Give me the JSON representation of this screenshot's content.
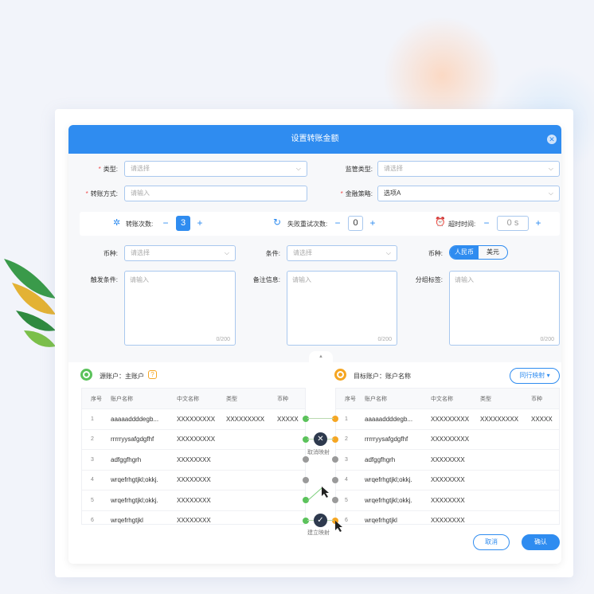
{
  "dialog": {
    "title": "设置转账金额"
  },
  "form": {
    "type": {
      "label": "类型:",
      "placeholder": "请选择"
    },
    "supervision_type": {
      "label": "监管类型:",
      "placeholder": "请选择"
    },
    "transfer_method": {
      "label": "转账方式:",
      "placeholder": "请输入"
    },
    "finance_strategy": {
      "label": "金融策略:",
      "value": "选项A"
    },
    "transfer_count": {
      "label": "转账次数:",
      "value": "3"
    },
    "retry_count": {
      "label": "失败重试次数:",
      "value": "0"
    },
    "timeout": {
      "label": "超时时间:",
      "value": "0 s"
    },
    "currency": {
      "label": "币种:",
      "placeholder": "请选择"
    },
    "condition": {
      "label": "条件:",
      "placeholder": "请选择"
    },
    "currency_toggle": {
      "label": "币种:",
      "options": [
        "人民币",
        "美元"
      ],
      "selected": "人民币"
    },
    "trigger": {
      "label": "触发条件:",
      "placeholder": "请输入",
      "count": "0/200"
    },
    "remarks": {
      "label": "备注信息:",
      "placeholder": "请输入",
      "count": "0/200"
    },
    "group_tag": {
      "label": "分组标签:",
      "placeholder": "请输入",
      "count": "0/200"
    }
  },
  "mapping": {
    "source_title": "源账户：主账户",
    "target_title": "目标账户：账户名称",
    "mode_button": "同行映射",
    "columns": [
      "序号",
      "账户名称",
      "中文名称",
      "类型",
      "币种"
    ],
    "source_rows": [
      [
        "1",
        "aaaaaddddegb...",
        "XXXXXXXXX",
        "XXXXXXXXX",
        "XXXXX"
      ],
      [
        "2",
        "rrrrryysafgdgfhf",
        "XXXXXXXXX",
        "",
        ""
      ],
      [
        "3",
        "adfggfhgrh",
        "XXXXXXXX",
        "",
        ""
      ],
      [
        "4",
        "wrqefrhgtjkl;okkj.",
        "XXXXXXXX",
        "",
        ""
      ],
      [
        "5",
        "wrqefrhgtjkl;okkj.",
        "XXXXXXXX",
        "",
        ""
      ],
      [
        "6",
        "wrqefrhgtjkl",
        "XXXXXXXX",
        "",
        ""
      ]
    ],
    "target_rows": [
      [
        "1",
        "aaaaaddddegb...",
        "XXXXXXXXX",
        "XXXXXXXXX",
        "XXXXX"
      ],
      [
        "2",
        "rrrrryysafgdgfhf",
        "XXXXXXXXX",
        "",
        ""
      ],
      [
        "3",
        "adfggfhgrh",
        "XXXXXXXX",
        "",
        ""
      ],
      [
        "4",
        "wrqefrhgtjkl;okkj.",
        "XXXXXXXX",
        "",
        ""
      ],
      [
        "5",
        "wrqefrhgtjkl;okkj.",
        "XXXXXXXX",
        "",
        ""
      ],
      [
        "6",
        "wrqefrhgtjkl",
        "XXXXXXXX",
        "",
        ""
      ]
    ],
    "cancel_mapping": "取消映射",
    "create_mapping": "建立映射"
  },
  "footer": {
    "cancel": "取消",
    "confirm": "确认"
  },
  "colors": {
    "primary": "#2f8cf0",
    "source": "#5bc25b",
    "target": "#f5a623"
  }
}
